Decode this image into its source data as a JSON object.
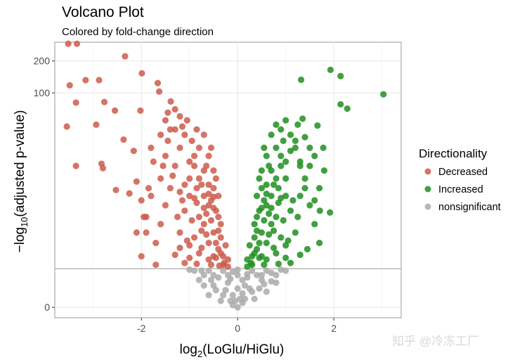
{
  "chart_data": {
    "type": "scatter",
    "title": "Volcano Plot",
    "subtitle": "Colored by fold-change direction",
    "xlabel": {
      "base": "log",
      "sub": "2",
      "rest": "(LoGlu/HiGlu)"
    },
    "ylabel": {
      "base": "−log",
      "sub": "10",
      "rest": "(adjusted p-value)"
    },
    "x_scale": "linear",
    "y_scale": "log1p",
    "xlim": [
      -3.8,
      3.4
    ],
    "ylim": [
      -0.2,
      300
    ],
    "x_ticks": [
      {
        "value": -2,
        "label": "-2"
      },
      {
        "value": 0,
        "label": "0"
      },
      {
        "value": 2,
        "label": "2"
      }
    ],
    "y_ticks": [
      {
        "value": 0,
        "label": "0"
      },
      {
        "value": 100,
        "label": "100"
      },
      {
        "value": 200,
        "label": "200"
      }
    ],
    "grid": true,
    "threshold_line": 1.3,
    "legend": {
      "title": "Directionality",
      "placement": "right"
    },
    "series": [
      {
        "name": "Decreased",
        "color": "#cd5c4c",
        "points": [
          [
            -3.52,
            290
          ],
          [
            -3.34,
            290
          ],
          [
            -2.34,
            221
          ],
          [
            -3.49,
            118
          ],
          [
            -3.16,
            132
          ],
          [
            -2.88,
            132
          ],
          [
            -3.36,
            81
          ],
          [
            -2.77,
            82
          ],
          [
            -3.55,
            48
          ],
          [
            -2.94,
            50
          ],
          [
            -2.55,
            68
          ],
          [
            -3.36,
            20
          ],
          [
            -2.83,
            21
          ],
          [
            -2.8,
            19
          ],
          [
            -1.99,
            153
          ],
          [
            -1.66,
            124
          ],
          [
            -1.63,
            103
          ],
          [
            -2.02,
            68
          ],
          [
            -1.39,
            83
          ],
          [
            -2.37,
            36
          ],
          [
            -2.16,
            28
          ],
          [
            -2.53,
            11.5
          ],
          [
            -2.25,
            10.6
          ],
          [
            -2.1,
            14
          ],
          [
            -2.0,
            9
          ],
          [
            -1.95,
            6
          ],
          [
            -2.1,
            4
          ],
          [
            -1.85,
            12
          ],
          [
            -1.75,
            22
          ],
          [
            -1.8,
            30
          ],
          [
            -1.6,
            40
          ],
          [
            -1.5,
            55
          ],
          [
            -1.45,
            65
          ],
          [
            -1.3,
            70
          ],
          [
            -1.4,
            45
          ],
          [
            -1.2,
            60
          ],
          [
            -1.05,
            55
          ],
          [
            -1.15,
            48
          ],
          [
            -1.7,
            3
          ],
          [
            -1.6,
            5
          ],
          [
            -1.5,
            8
          ],
          [
            -1.4,
            12
          ],
          [
            -1.3,
            20
          ],
          [
            -1.2,
            30
          ],
          [
            -1.1,
            40
          ],
          [
            -1.3,
            45
          ],
          [
            -1.5,
            25
          ],
          [
            -1.6,
            15
          ],
          [
            -1.8,
            10
          ],
          [
            -1.9,
            6
          ],
          [
            -1.2,
            4
          ],
          [
            -1.1,
            7
          ],
          [
            -1.0,
            10
          ],
          [
            -1.0,
            15
          ],
          [
            -0.9,
            20
          ],
          [
            -0.9,
            25
          ],
          [
            -0.8,
            30
          ],
          [
            -0.8,
            15
          ],
          [
            -0.7,
            10
          ],
          [
            -0.7,
            5
          ],
          [
            -0.6,
            3
          ],
          [
            -0.6,
            8
          ],
          [
            -0.5,
            12
          ],
          [
            -0.5,
            4
          ],
          [
            -0.4,
            2.5
          ],
          [
            -0.4,
            6
          ],
          [
            -0.3,
            2
          ],
          [
            -0.3,
            1.5
          ],
          [
            -0.2,
            1.4
          ],
          [
            -0.5,
            2
          ],
          [
            -0.6,
            1.8
          ],
          [
            -0.8,
            2.2
          ],
          [
            -0.9,
            3.5
          ],
          [
            -1.0,
            2.8
          ],
          [
            -1.1,
            1.6
          ],
          [
            -1.3,
            2.1
          ],
          [
            -0.7,
            18
          ],
          [
            -0.6,
            13
          ],
          [
            -0.55,
            9
          ],
          [
            -0.45,
            7
          ],
          [
            -0.35,
            3.5
          ],
          [
            -0.65,
            6.5
          ],
          [
            -0.75,
            4.2
          ],
          [
            -0.85,
            8.5
          ],
          [
            -0.95,
            5.5
          ],
          [
            -1.05,
            3.2
          ],
          [
            -1.15,
            9
          ],
          [
            -1.25,
            6
          ],
          [
            -1.35,
            16
          ],
          [
            -1.45,
            35
          ],
          [
            -0.95,
            35
          ],
          [
            -0.85,
            12
          ],
          [
            -0.7,
            40
          ],
          [
            -0.6,
            25
          ],
          [
            -0.5,
            18
          ],
          [
            -0.4,
            10
          ],
          [
            -0.45,
            15
          ],
          [
            -0.35,
            5
          ],
          [
            -0.25,
            2.8
          ],
          [
            -0.2,
            1.8
          ],
          [
            -0.55,
            1.5
          ],
          [
            -1.7,
            1.5
          ],
          [
            -2.0,
            2
          ],
          [
            -1.9,
            4
          ],
          [
            -1.55,
            20
          ],
          [
            -0.75,
            2.6
          ],
          [
            -0.65,
            3.8
          ],
          [
            -0.55,
            5.5
          ],
          [
            -0.5,
            7.5
          ],
          [
            -0.45,
            3
          ],
          [
            -0.4,
            4.2
          ],
          [
            -0.8,
            6
          ],
          [
            -0.9,
            9.5
          ],
          [
            -0.75,
            13
          ],
          [
            -0.65,
            20
          ],
          [
            -0.55,
            30
          ],
          [
            -0.85,
            45
          ],
          [
            -1.0,
            22
          ],
          [
            -1.1,
            13
          ],
          [
            -1.2,
            11
          ],
          [
            -0.7,
            7.5
          ],
          [
            -0.6,
            10.5
          ],
          [
            -0.5,
            9.8
          ],
          [
            -0.35,
            2.2
          ],
          [
            -0.45,
            1.9
          ],
          [
            -0.28,
            1.6
          ],
          [
            -0.38,
            1.45
          ],
          [
            -0.85,
            1.55
          ],
          [
            -1.0,
            1.9
          ],
          [
            -1.2,
            2.6
          ]
        ]
      },
      {
        "name": "Increased",
        "color": "#1f8f1f",
        "points": [
          [
            1.32,
            133
          ],
          [
            1.93,
            165
          ],
          [
            2.14,
            144
          ],
          [
            2.14,
            78
          ],
          [
            2.28,
            71
          ],
          [
            3.03,
            97
          ],
          [
            1.66,
            49
          ],
          [
            1.35,
            57
          ],
          [
            1.78,
            30
          ],
          [
            1.92,
            6.7
          ],
          [
            1.71,
            7
          ],
          [
            1.0,
            55
          ],
          [
            0.9,
            45
          ],
          [
            1.1,
            40
          ],
          [
            1.2,
            35
          ],
          [
            1.25,
            50
          ],
          [
            1.4,
            38
          ],
          [
            1.5,
            30
          ],
          [
            1.6,
            25
          ],
          [
            1.5,
            20
          ],
          [
            1.4,
            15
          ],
          [
            1.7,
            12
          ],
          [
            1.6,
            9
          ],
          [
            1.8,
            18
          ],
          [
            1.3,
            22
          ],
          [
            1.7,
            3
          ],
          [
            1.6,
            5
          ],
          [
            1.5,
            8
          ],
          [
            1.4,
            12
          ],
          [
            1.3,
            20
          ],
          [
            1.2,
            30
          ],
          [
            1.1,
            28
          ],
          [
            1.3,
            10
          ],
          [
            1.2,
            4
          ],
          [
            1.1,
            7
          ],
          [
            1.0,
            10
          ],
          [
            1.0,
            15
          ],
          [
            0.9,
            20
          ],
          [
            0.9,
            25
          ],
          [
            0.8,
            30
          ],
          [
            0.8,
            15
          ],
          [
            0.7,
            10
          ],
          [
            0.7,
            5
          ],
          [
            0.6,
            3
          ],
          [
            0.6,
            8
          ],
          [
            0.5,
            12
          ],
          [
            0.5,
            4
          ],
          [
            0.4,
            2.5
          ],
          [
            0.4,
            6
          ],
          [
            0.3,
            2
          ],
          [
            0.3,
            1.5
          ],
          [
            0.2,
            1.4
          ],
          [
            0.5,
            2
          ],
          [
            0.6,
            1.8
          ],
          [
            0.8,
            2.2
          ],
          [
            0.9,
            3.5
          ],
          [
            1.0,
            2.8
          ],
          [
            1.1,
            1.6
          ],
          [
            1.3,
            2.1
          ],
          [
            0.7,
            18
          ],
          [
            0.6,
            13
          ],
          [
            0.55,
            9
          ],
          [
            0.45,
            7
          ],
          [
            0.35,
            3.5
          ],
          [
            0.65,
            6.5
          ],
          [
            0.75,
            4.2
          ],
          [
            0.85,
            8.5
          ],
          [
            0.95,
            5.5
          ],
          [
            1.05,
            3.2
          ],
          [
            1.15,
            9
          ],
          [
            1.25,
            6
          ],
          [
            0.95,
            35
          ],
          [
            0.85,
            12
          ],
          [
            0.7,
            40
          ],
          [
            0.6,
            25
          ],
          [
            0.5,
            18
          ],
          [
            0.4,
            10
          ],
          [
            0.45,
            15
          ],
          [
            0.35,
            5
          ],
          [
            0.25,
            2.8
          ],
          [
            0.2,
            1.8
          ],
          [
            0.55,
            1.5
          ],
          [
            1.45,
            2.5
          ],
          [
            0.75,
            2.6
          ],
          [
            0.65,
            3.8
          ],
          [
            0.55,
            5.5
          ],
          [
            0.5,
            7.5
          ],
          [
            0.45,
            3
          ],
          [
            0.4,
            4.2
          ],
          [
            0.8,
            6
          ],
          [
            0.9,
            9.5
          ],
          [
            0.75,
            13
          ],
          [
            0.65,
            20
          ],
          [
            0.55,
            30
          ],
          [
            0.8,
            50
          ],
          [
            1.0,
            22
          ],
          [
            0.7,
            7.5
          ],
          [
            0.6,
            10.5
          ],
          [
            0.35,
            2.2
          ],
          [
            0.45,
            1.9
          ],
          [
            0.28,
            1.6
          ],
          [
            0.85,
            1.55
          ],
          [
            1.0,
            1.9
          ]
        ]
      },
      {
        "name": "nonsignificant",
        "color": "#aaaaaa",
        "points": [
          [
            -0.9,
            1.2
          ],
          [
            -0.7,
            1.0
          ],
          [
            -0.5,
            0.6
          ],
          [
            -0.3,
            0.3
          ],
          [
            -0.1,
            0.05
          ],
          [
            0,
            0
          ],
          [
            0.1,
            0.1
          ],
          [
            0.3,
            0.4
          ],
          [
            0.5,
            0.8
          ],
          [
            0.7,
            1.1
          ],
          [
            0.9,
            1.25
          ],
          [
            -0.6,
            0.3
          ],
          [
            0.6,
            0.4
          ],
          [
            -0.4,
            0.9
          ],
          [
            0.4,
            1.0
          ],
          [
            -0.2,
            0.7
          ],
          [
            0.2,
            0.9
          ],
          [
            0,
            0.5
          ],
          [
            0,
            1.0
          ],
          [
            -0.8,
            0.8
          ],
          [
            0.8,
            0.7
          ],
          [
            -1.0,
            1.25
          ],
          [
            1.0,
            1.2
          ],
          [
            -0.15,
            0.15
          ],
          [
            0.15,
            0.2
          ],
          [
            -0.35,
            0.15
          ],
          [
            0.35,
            0.2
          ],
          [
            -0.6,
            1.2
          ],
          [
            -0.3,
            1.2
          ],
          [
            0,
            1.25
          ],
          [
            0.3,
            1.2
          ],
          [
            0.6,
            1.2
          ],
          [
            -0.5,
            1.0
          ],
          [
            -0.2,
            1.0
          ],
          [
            0.2,
            1.05
          ],
          [
            0.5,
            1.0
          ],
          [
            -0.45,
            0.45
          ],
          [
            0.45,
            0.5
          ],
          [
            -0.25,
            0.45
          ],
          [
            0.25,
            0.5
          ],
          [
            -0.1,
            0.3
          ],
          [
            0.1,
            0.35
          ],
          [
            -0.05,
            0.15
          ],
          [
            0.05,
            0.2
          ],
          [
            -0.7,
            0.6
          ],
          [
            0.7,
            0.75
          ],
          [
            -0.55,
            0.8
          ],
          [
            0.55,
            0.65
          ],
          [
            -0.75,
            1.2
          ],
          [
            0.8,
            1.0
          ],
          [
            -0.15,
            0.85
          ],
          [
            0.15,
            0.6
          ],
          [
            -0.1,
            1.15
          ],
          [
            0.1,
            0.8
          ]
        ]
      }
    ]
  },
  "watermark": "知乎 @冷冻工厂"
}
